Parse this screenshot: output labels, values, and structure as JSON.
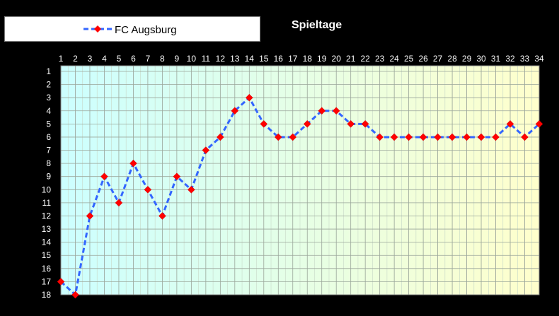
{
  "chart_data": {
    "type": "line",
    "title": "Spieltage",
    "x": [
      1,
      2,
      3,
      4,
      5,
      6,
      7,
      8,
      9,
      10,
      11,
      12,
      13,
      14,
      15,
      16,
      17,
      18,
      19,
      20,
      21,
      22,
      23,
      24,
      25,
      26,
      27,
      28,
      29,
      30,
      31,
      32,
      33,
      34
    ],
    "series": [
      {
        "name": "FC Augsburg",
        "values": [
          17,
          18,
          12,
          9,
          11,
          8,
          10,
          12,
          9,
          10,
          7,
          6,
          4,
          3,
          5,
          6,
          6,
          5,
          4,
          4,
          5,
          5,
          6,
          6,
          6,
          6,
          6,
          6,
          6,
          6,
          6,
          5,
          6,
          5
        ],
        "line_color": "#3366ff",
        "line_style": "dashed",
        "marker": "diamond",
        "marker_color": "#ff0000"
      }
    ],
    "xlim": [
      1,
      34
    ],
    "ylim": [
      1,
      18
    ],
    "y_inverted": true,
    "x_axis_position": "top",
    "grid": true,
    "legend_position": "top-left",
    "background_gradient": [
      "#ccffff",
      "#ffffcc"
    ]
  }
}
